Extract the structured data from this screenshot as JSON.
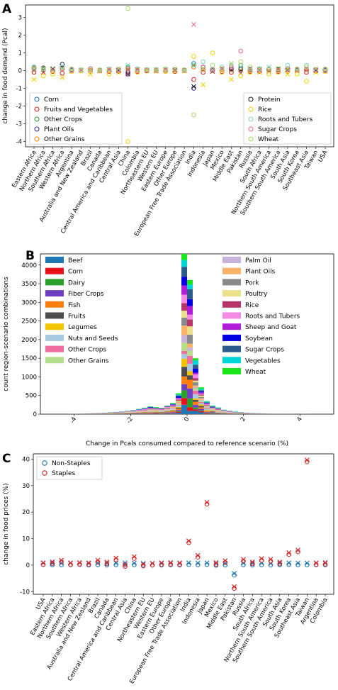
{
  "panel_labels": [
    "A",
    "B",
    "C"
  ],
  "chart_data": [
    {
      "panel": "A",
      "type": "scatter",
      "ylabel": "change in food demand (Pcal)",
      "xlabel": "",
      "ylim": [
        -4.3,
        3.7
      ],
      "yticks": [
        -4,
        -3,
        -2,
        -1,
        0,
        1,
        2,
        3
      ],
      "categories": [
        "Eastern Africa",
        "Northern Africa",
        "Southern Africa",
        "Western Africa",
        "Argentina",
        "Australia and New Zealand",
        "Brazil",
        "Canada",
        "Central America and Caribbean",
        "Central Asia",
        "China",
        "Colombia",
        "Northeastern EU",
        "Western EU",
        "Eastern Europe",
        "Other Europe",
        "European Free Trade Association",
        "India",
        "Indonesia",
        "Japan",
        "Mexico",
        "Middle East",
        "Pakistan",
        "Russia",
        "South Africa",
        "Northern South America",
        "Southern South America",
        "South Asia",
        "South Korea",
        "Southeast Asia",
        "Taiwan",
        "USA"
      ],
      "legend_left": [
        "Corn",
        "Fruits and Vegetables",
        "Other Crops",
        "Plant Oils",
        "Other Grains"
      ],
      "legend_right": [
        "Protein",
        "Rice",
        "Roots and Tubers",
        "Sugar Crops",
        "Wheat"
      ],
      "series": [
        {
          "name": "Corn",
          "color": "#1f77b4",
          "values": [
            0.1,
            0.05,
            0.05,
            0.15,
            0.02,
            0.01,
            0.05,
            0.01,
            0.03,
            0.02,
            0.15,
            0.05,
            0.01,
            0.01,
            0.02,
            0.02,
            0.01,
            0.4,
            0.1,
            0.02,
            0.1,
            0.05,
            0.05,
            0.02,
            0.05,
            0.05,
            0.05,
            0.02,
            0.02,
            0.05,
            0.02,
            0.01
          ]
        },
        {
          "name": "Fruits and Vegetables",
          "color": "#d62728",
          "values": [
            -0.1,
            -0.1,
            -0.05,
            -0.15,
            -0.02,
            -0.01,
            -0.05,
            -0.02,
            -0.05,
            -0.05,
            -0.2,
            -0.05,
            -0.02,
            -0.02,
            -0.05,
            -0.05,
            -0.01,
            -0.5,
            -0.1,
            -0.05,
            -0.05,
            -0.1,
            -0.15,
            -0.05,
            -0.05,
            -0.05,
            -0.05,
            -0.05,
            -0.02,
            -0.1,
            -0.03,
            -0.02
          ]
        },
        {
          "name": "Other Crops",
          "color": "#2ca02c",
          "values": [
            0.15,
            0.1,
            0.05,
            0.2,
            0.05,
            0.02,
            0.1,
            0.02,
            0.05,
            0.05,
            0.2,
            0.05,
            0.05,
            0.05,
            0.05,
            0.05,
            0.02,
            0.3,
            0.2,
            0.05,
            0.1,
            0.1,
            0.3,
            0.1,
            0.1,
            0.1,
            0.1,
            0.1,
            0.05,
            0.1,
            0.05,
            0.05
          ]
        },
        {
          "name": "Plant Oils",
          "color": "#3f2a8c",
          "values": [
            0.05,
            0.05,
            0.02,
            0.1,
            0.02,
            0.01,
            0.05,
            0.01,
            0.02,
            0.02,
            -0.2,
            0.02,
            0.01,
            0.01,
            0.02,
            0.02,
            0.01,
            -1.0,
            0.1,
            0.02,
            0.05,
            0.05,
            0.1,
            0.05,
            0.05,
            0.05,
            0.05,
            0.05,
            0.02,
            0.05,
            0.02,
            0.02
          ]
        },
        {
          "name": "Other Grains",
          "color": "#ff7f0e",
          "values": [
            0.05,
            0.05,
            0.02,
            0.1,
            0.02,
            0.01,
            0.02,
            0.01,
            0.02,
            0.02,
            0.1,
            0.02,
            0.01,
            0.01,
            0.02,
            0.02,
            0.01,
            0.2,
            0.05,
            0.02,
            0.05,
            0.05,
            0.05,
            0.02,
            0.02,
            0.02,
            0.02,
            0.02,
            0.02,
            0.05,
            0.02,
            0.02
          ]
        },
        {
          "name": "Protein",
          "color": "#222222",
          "values": [
            0.2,
            0.15,
            0.1,
            0.35,
            0.05,
            0.02,
            0.1,
            0.02,
            0.05,
            0.05,
            -0.1,
            0.05,
            0.02,
            0.02,
            0.05,
            0.05,
            0.02,
            -0.9,
            0.2,
            0.05,
            0.1,
            0.1,
            0.1,
            0.05,
            0.05,
            0.1,
            0.05,
            0.1,
            0.05,
            0.1,
            0.05,
            0.05
          ]
        },
        {
          "name": "Rice",
          "color": "#f2d400",
          "values": [
            -0.5,
            -0.3,
            -0.2,
            -0.4,
            -0.05,
            -0.02,
            -0.2,
            -0.02,
            -0.2,
            -0.1,
            -4.0,
            -0.1,
            -0.02,
            -0.02,
            -0.05,
            -0.05,
            -0.02,
            0.8,
            -0.8,
            1.0,
            -0.1,
            -0.5,
            -0.3,
            -0.1,
            -0.1,
            -0.2,
            -0.1,
            -0.2,
            -0.2,
            -0.6,
            -0.1,
            -0.05
          ]
        },
        {
          "name": "Roots and Tubers",
          "color": "#7fd3c7",
          "values": [
            0.2,
            0.1,
            0.05,
            0.2,
            0.05,
            0.02,
            0.1,
            0.02,
            0.1,
            0.05,
            0.3,
            0.1,
            0.05,
            0.05,
            0.05,
            0.05,
            0.02,
            0.3,
            0.5,
            0.05,
            0.2,
            0.3,
            0.2,
            0.1,
            0.1,
            0.2,
            0.1,
            0.3,
            0.05,
            0.3,
            0.05,
            0.05
          ]
        },
        {
          "name": "Sugar Crops",
          "color": "#ea6a9f",
          "values": [
            0.1,
            0.1,
            0.05,
            0.1,
            0.05,
            0.02,
            0.1,
            0.02,
            0.05,
            0.05,
            0.1,
            0.05,
            0.02,
            0.02,
            0.05,
            0.05,
            0.02,
            2.6,
            0.2,
            0.05,
            0.1,
            0.2,
            1.1,
            0.1,
            0.05,
            0.1,
            0.05,
            0.1,
            0.05,
            0.1,
            0.05,
            0.05
          ]
        },
        {
          "name": "Wheat",
          "color": "#a6d96a",
          "values": [
            0.1,
            0.1,
            0.05,
            0.1,
            0.1,
            0.05,
            0.05,
            0.05,
            0.05,
            0.1,
            3.5,
            0.05,
            0.05,
            0.05,
            0.1,
            0.1,
            0.05,
            -2.5,
            0.1,
            0.3,
            0.1,
            0.4,
            0.5,
            0.2,
            0.1,
            0.1,
            0.1,
            0.1,
            0.1,
            0.2,
            0.1,
            0.1
          ]
        }
      ]
    },
    {
      "panel": "B",
      "type": "bar",
      "subtype": "stacked-histogram",
      "xlabel": "Change in Pcals consumed compared to reference scenario (%)",
      "ylabel": "count region-scenario combinations",
      "xlim": [
        -5.2,
        5.2
      ],
      "ylim": [
        0,
        4300
      ],
      "xticks": [
        -4,
        -2,
        0,
        2,
        4
      ],
      "yticks": [
        0,
        500,
        1000,
        1500,
        2000,
        2500,
        3000,
        3500,
        4000
      ],
      "legend_left": [
        "Beef",
        "Corn",
        "Dairy",
        "Fiber Crops",
        "Fish",
        "Fruits",
        "Legumes",
        "Nuts and Seeds",
        "Other Crops",
        "Other Grains"
      ],
      "legend_right": [
        "Palm Oil",
        "Plant Oils",
        "Pork",
        "Poultry",
        "Rice",
        "Roots and Tubers",
        "Sheep and Goat",
        "Soybean",
        "Sugar Crops",
        "Vegetables",
        "Wheat"
      ],
      "colors": [
        "#1f77b4",
        "#e8101a",
        "#2ca02c",
        "#6f3fc1",
        "#ff7f0e",
        "#4d4d4d",
        "#f5c400",
        "#a6c8e0",
        "#ef6ea0",
        "#b5de8a",
        "#c9b3da",
        "#f9b46a",
        "#8a8a8a",
        "#ece08a",
        "#b8336a",
        "#f58ae6",
        "#b21bd8",
        "#0000e0",
        "#2e5c8a",
        "#00d5d5",
        "#19e619"
      ],
      "bin_width": 0.2,
      "bin_centers": [
        -4.1,
        -3.9,
        -3.7,
        -3.5,
        -3.3,
        -3.1,
        -2.9,
        -2.7,
        -2.5,
        -2.3,
        -2.1,
        -1.9,
        -1.7,
        -1.5,
        -1.3,
        -1.1,
        -0.9,
        -0.7,
        -0.5,
        -0.3,
        -0.1,
        0.1,
        0.3,
        0.5,
        0.7,
        0.9,
        1.1,
        1.3,
        1.5,
        1.7,
        1.9,
        2.1,
        2.3,
        2.5,
        2.7,
        2.9,
        3.1,
        3.3,
        3.5,
        3.7,
        3.9,
        4.1,
        4.3
      ],
      "totals": [
        10,
        10,
        15,
        20,
        25,
        30,
        40,
        50,
        60,
        70,
        90,
        110,
        140,
        170,
        210,
        190,
        170,
        230,
        300,
        560,
        4300,
        3600,
        1500,
        720,
        350,
        230,
        180,
        120,
        90,
        70,
        55,
        40,
        30,
        25,
        20,
        15,
        10,
        10,
        10,
        10,
        15,
        12,
        5
      ]
    },
    {
      "panel": "C",
      "type": "scatter",
      "ylabel": "change in food prices (%)",
      "xlabel": "",
      "ylim": [
        -11,
        42
      ],
      "yticks": [
        -10,
        0,
        10,
        20,
        30,
        40
      ],
      "categories": [
        "USA",
        "Eastern Africa",
        "Northern Africa",
        "Southern Africa",
        "Western Africa",
        "Australia and New Zealand",
        "Brazil",
        "Canada",
        "Central America and Caribbean",
        "Central Asia",
        "China",
        "Northeastern EU",
        "Western EU",
        "Eastern Europe",
        "Other Europe",
        "European Free Trade Association",
        "India",
        "Indonesia",
        "Japan",
        "Mexico",
        "Middle East",
        "Pakistan",
        "Russia",
        "South Africa",
        "Northern South America",
        "Southern South America",
        "South Asia",
        "South Korea",
        "Southeast Asia",
        "Taiwan",
        "Argentina",
        "Colombia"
      ],
      "legend": [
        "Non-Staples",
        "Staples"
      ],
      "series": [
        {
          "name": "Non-Staples",
          "color": "#1f77b4",
          "values": [
            0.2,
            0.1,
            0.1,
            0.1,
            0.2,
            0.0,
            0.1,
            0.0,
            0.1,
            0.2,
            0.1,
            0.0,
            0.0,
            0.0,
            0.1,
            0.0,
            0.2,
            0.1,
            0.2,
            -0.1,
            0.0,
            -3.8,
            0.1,
            0.0,
            0.1,
            0.0,
            0.1,
            0.2,
            0.1,
            0.1,
            0.1,
            0.1
          ]
        },
        {
          "name": "Staples",
          "color": "#d62728",
          "values": [
            0.2,
            0.6,
            1.2,
            0.2,
            0.3,
            0.2,
            1.2,
            0.5,
            2.0,
            -0.5,
            2.5,
            -0.3,
            0.0,
            0.2,
            0.3,
            0.2,
            8.5,
            3.0,
            23.0,
            0.3,
            1.0,
            -8.8,
            1.5,
            0.5,
            1.8,
            1.5,
            0.5,
            4.0,
            5.0,
            39.0,
            0.2,
            0.3
          ]
        }
      ]
    }
  ]
}
